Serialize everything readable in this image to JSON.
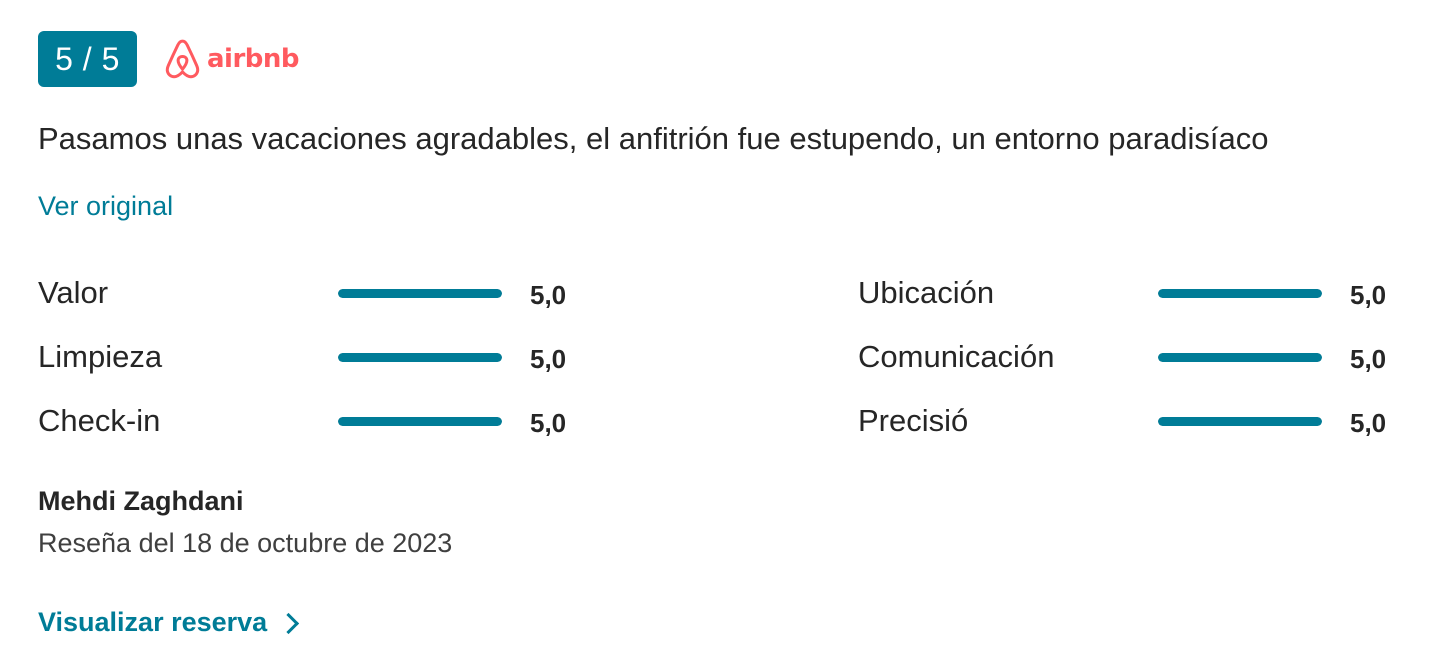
{
  "score_badge": "5 / 5",
  "source": {
    "name": "airbnb",
    "icon": "airbnb-logo-icon",
    "color": "#ff5a5f"
  },
  "review": {
    "text": "Pasamos unas vacaciones agradables, el anfitrión fue estupendo, un entorno paradisíaco",
    "see_original": "Ver original"
  },
  "ratings": {
    "left": [
      {
        "label": "Valor",
        "value": "5,0",
        "fill_fraction": 1.0
      },
      {
        "label": "Limpieza",
        "value": "5,0",
        "fill_fraction": 1.0
      },
      {
        "label": "Check-in",
        "value": "5,0",
        "fill_fraction": 1.0
      }
    ],
    "right": [
      {
        "label": "Ubicación",
        "value": "5,0",
        "fill_fraction": 1.0
      },
      {
        "label": "Comunicación",
        "value": "5,0",
        "fill_fraction": 1.0
      },
      {
        "label": "Precisió",
        "value": "5,0",
        "fill_fraction": 1.0
      }
    ]
  },
  "reviewer": {
    "name": "Mehdi Zaghdani",
    "date": "Reseña del 18 de octubre de 2023"
  },
  "actions": {
    "view_booking": "Visualizar reserva",
    "view_booking_icon": "chevron-right-icon"
  },
  "colors": {
    "accent": "#007c97",
    "text": "#262626",
    "airbnb": "#ff5a5f"
  }
}
